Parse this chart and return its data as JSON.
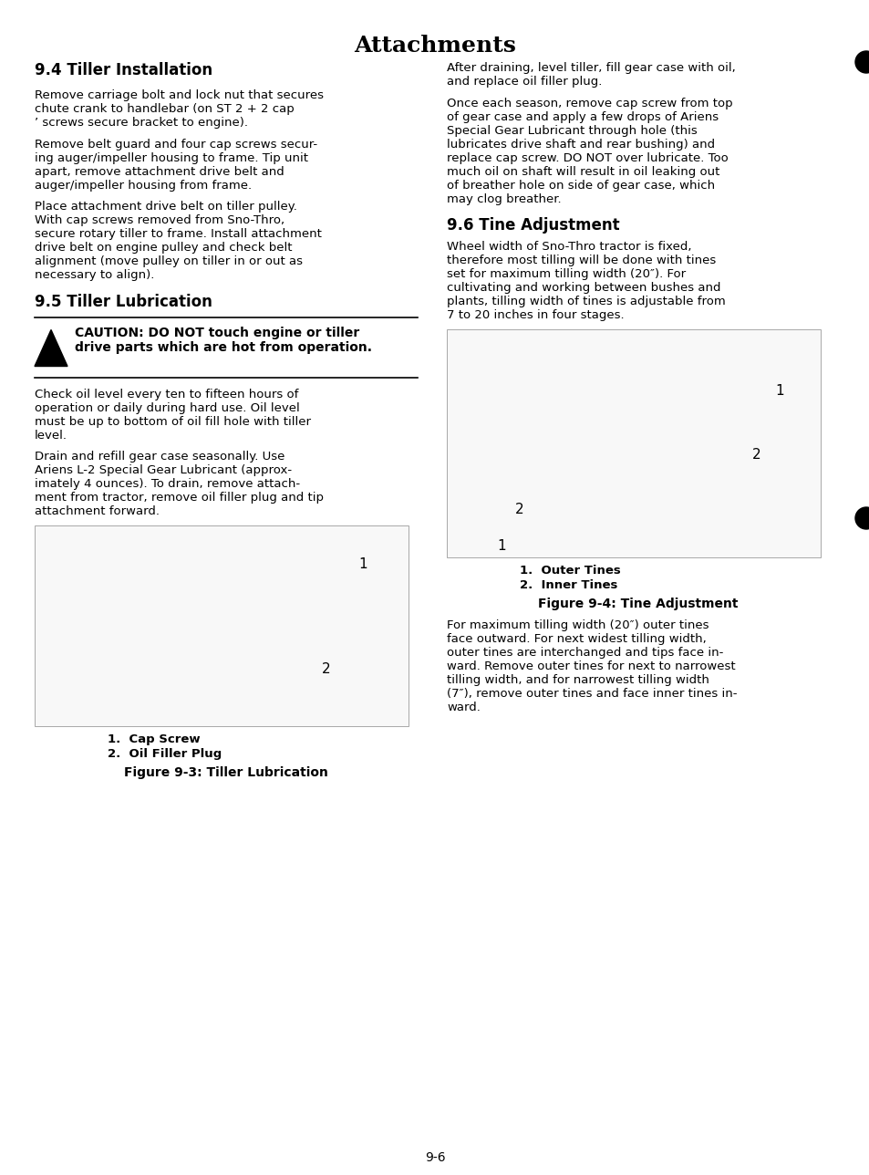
{
  "title": "Attachments",
  "page_number": "9-6",
  "background_color": "#ffffff",
  "text_color": "#000000",
  "section_44_title": "9.4 Tiller Installation",
  "section_44_paragraphs": [
    "Remove carriage bolt and lock nut that secures\nchute crank to handlebar (on ST 2 + 2 cap\n’ screws secure bracket to engine).",
    "Remove belt guard and four cap screws secur-\ning auger/impeller housing to frame. Tip unit\napart, remove attachment drive belt and\nauger/impeller housing from frame.",
    "Place attachment drive belt on tiller pulley.\nWith cap screws removed from Sno-Thro,\nsecure rotary tiller to frame. Install attachment\ndrive belt on engine pulley and check belt\nalignment (move pulley on tiller in or out as\nnecessary to align)."
  ],
  "section_45_title": "9.5 Tiller Lubrication",
  "caution_text": "CAUTION: DO NOT touch engine or tiller\ndrive parts which are hot from operation.",
  "section_45_paragraphs": [
    "Check oil level every ten to fifteen hours of\noperation or daily during hard use. Oil level\nmust be up to bottom of oil fill hole with tiller\nlevel.",
    "Drain and refill gear case seasonally. Use\nAriens L-2 Special Gear Lubricant (approx-\nimately 4 ounces). To drain, remove attach-\nment from tractor, remove oil filler plug and tip\nattachment forward.",
    "After draining, level tiller, fill gear case with oil,\nand replace oil filler plug.",
    "Once each season, remove cap screw from top\nof gear case and apply a few drops of Ariens\nSpecial Gear Lubricant through hole (this\nlubricates drive shaft and rear bushing) and\nreplace cap screw. DO NOT over lubricate. Too\nmuch oil on shaft will result in oil leaking out\nof breather hole on side of gear case, which\nmay clog breather."
  ],
  "fig3_caption_title": "Figure 9-3: Tiller Lubrication",
  "fig3_labels": [
    "1.  Cap Screw",
    "2.  Oil Filler Plug"
  ],
  "section_46_title": "9.6 Tine Adjustment",
  "section_46_paragraphs": [
    "Wheel width of Sno-Thro tractor is fixed,\ntherefore most tilling will be done with tines\nset for maximum tilling width (20″). For\ncultivating and working between bushes and\nplants, tilling width of tines is adjustable from\n7 to 20 inches in four stages."
  ],
  "fig4_caption_title": "Figure 9-4: Tine Adjustment",
  "fig4_labels": [
    "1.  Outer Tines",
    "2.  Inner Tines"
  ],
  "section_46_paragraphs2": [
    "For maximum tilling width (20″) outer tines\nface outward. For next widest tilling width,\nouter tines are interchanged and tips face in-\nward. Remove outer tines for next to narrowest\ntilling width, and for narrowest tilling width\n(7″), remove outer tines and face inner tines in-\nward."
  ]
}
